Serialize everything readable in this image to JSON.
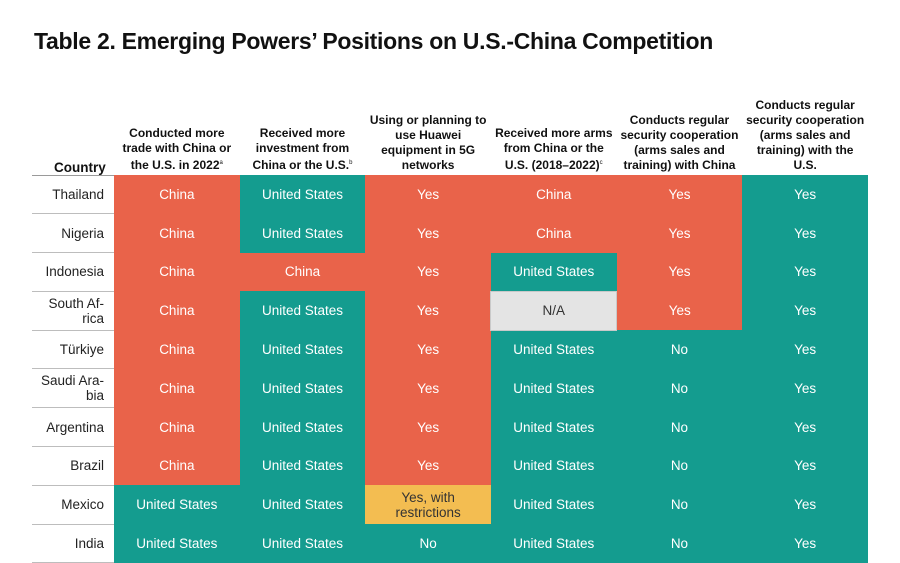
{
  "title": "Table 2. Emerging Powers’ Positions on U.S.-China Competition",
  "colors": {
    "china": "#e9634a",
    "united_states": "#149c8f",
    "na": "#e4e4e4",
    "restrictions": "#f3bd51"
  },
  "headers": {
    "country": "Country",
    "trade": {
      "text": "Conducted more trade with China or the U.S. in 2022",
      "note": "a"
    },
    "investment": {
      "text": "Received more investment from China or the U.S.",
      "note": "b"
    },
    "huawei": {
      "text": "Using or planning to use Huawei equipment in 5G networks",
      "note": ""
    },
    "arms": {
      "text": "Received more arms from China or the U.S. (2018–2022)",
      "note": "c"
    },
    "sec_china": {
      "text": "Conducts regular security cooperation (arms sales and training) with China",
      "note": ""
    },
    "sec_us": {
      "text": "Conducts regular security cooperation (arms sales and training) with the U.S.",
      "note": ""
    }
  },
  "rows": [
    {
      "country": "Thailand",
      "trade": "China",
      "investment": "United States",
      "huawei": "Yes",
      "arms": "China",
      "sec_china": "Yes",
      "sec_us": "Yes"
    },
    {
      "country": "Nigeria",
      "trade": "China",
      "investment": "United States",
      "huawei": "Yes",
      "arms": "China",
      "sec_china": "Yes",
      "sec_us": "Yes"
    },
    {
      "country": "Indonesia",
      "trade": "China",
      "investment": "China",
      "huawei": "Yes",
      "arms": "United States",
      "sec_china": "Yes",
      "sec_us": "Yes"
    },
    {
      "country": "South Af-rica",
      "trade": "China",
      "investment": "United States",
      "huawei": "Yes",
      "arms": "N/A",
      "sec_china": "Yes",
      "sec_us": "Yes"
    },
    {
      "country": "Türkiye",
      "trade": "China",
      "investment": "United States",
      "huawei": "Yes",
      "arms": "United States",
      "sec_china": "No",
      "sec_us": "Yes"
    },
    {
      "country": "Saudi Ara-bia",
      "trade": "China",
      "investment": "United States",
      "huawei": "Yes",
      "arms": "United States",
      "sec_china": "No",
      "sec_us": "Yes"
    },
    {
      "country": "Argentina",
      "trade": "China",
      "investment": "United States",
      "huawei": "Yes",
      "arms": "United States",
      "sec_china": "No",
      "sec_us": "Yes"
    },
    {
      "country": "Brazil",
      "trade": "China",
      "investment": "United States",
      "huawei": "Yes",
      "arms": "United States",
      "sec_china": "No",
      "sec_us": "Yes"
    },
    {
      "country": "Mexico",
      "trade": "United States",
      "investment": "United States",
      "huawei": "Yes, with restrictions",
      "arms": "United States",
      "sec_china": "No",
      "sec_us": "Yes"
    },
    {
      "country": "India",
      "trade": "United States",
      "investment": "United States",
      "huawei": "No",
      "arms": "United States",
      "sec_china": "No",
      "sec_us": "Yes"
    }
  ]
}
